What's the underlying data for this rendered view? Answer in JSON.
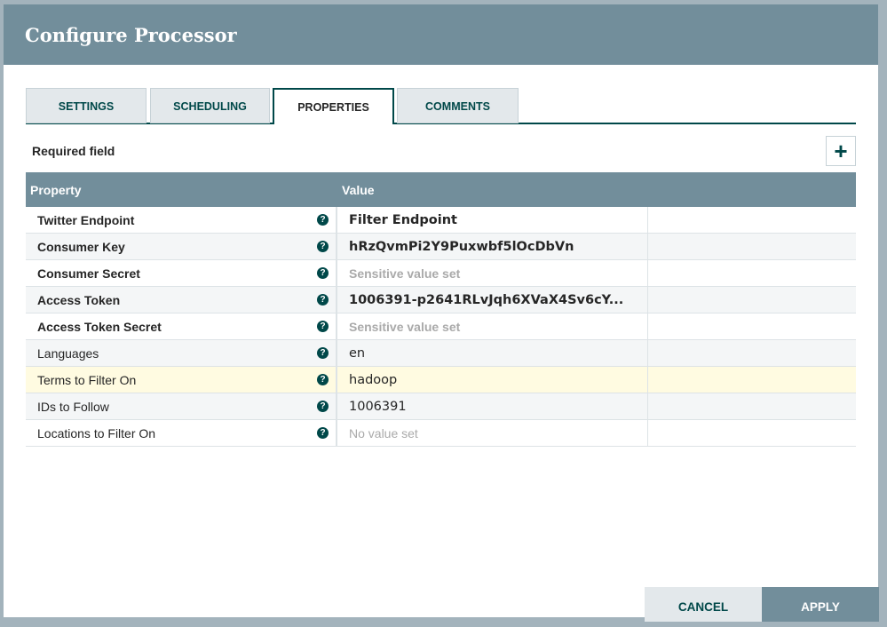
{
  "dialog": {
    "title": "Configure Processor"
  },
  "tabs": [
    {
      "label": "SETTINGS"
    },
    {
      "label": "SCHEDULING"
    },
    {
      "label": "PROPERTIES",
      "active": true
    },
    {
      "label": "COMMENTS"
    }
  ],
  "required_label": "Required field",
  "add_icon": "plus-icon",
  "add_label": "+",
  "table": {
    "headers": {
      "property": "Property",
      "value": "Value"
    },
    "help_glyph": "?",
    "rows": [
      {
        "name": "Twitter Endpoint",
        "value": "Filter Endpoint",
        "required": true,
        "style": "bold"
      },
      {
        "name": "Consumer Key",
        "value": "hRzQvmPi2Y9Puxwbf5lOcDbVn",
        "required": true,
        "style": "bold"
      },
      {
        "name": "Consumer Secret",
        "value": "Sensitive value set",
        "required": true,
        "style": "sensitive"
      },
      {
        "name": "Access Token",
        "value": "1006391-p2641RLvJqh6XVaX4Sv6cY...",
        "required": true,
        "style": "bold"
      },
      {
        "name": "Access Token Secret",
        "value": "Sensitive value set",
        "required": true,
        "style": "sensitive"
      },
      {
        "name": "Languages",
        "value": "en",
        "required": false,
        "style": "normal"
      },
      {
        "name": "Terms to Filter On",
        "value": "hadoop",
        "required": false,
        "style": "normal",
        "selected": true
      },
      {
        "name": "IDs to Follow",
        "value": "1006391",
        "required": false,
        "style": "normal"
      },
      {
        "name": "Locations to Filter On",
        "value": "No value set",
        "required": false,
        "style": "empty"
      }
    ]
  },
  "buttons": {
    "cancel": "CANCEL",
    "apply": "APPLY"
  },
  "colors": {
    "header": "#728e9b",
    "accent": "#004849",
    "selected_row": "#fffbe1"
  }
}
